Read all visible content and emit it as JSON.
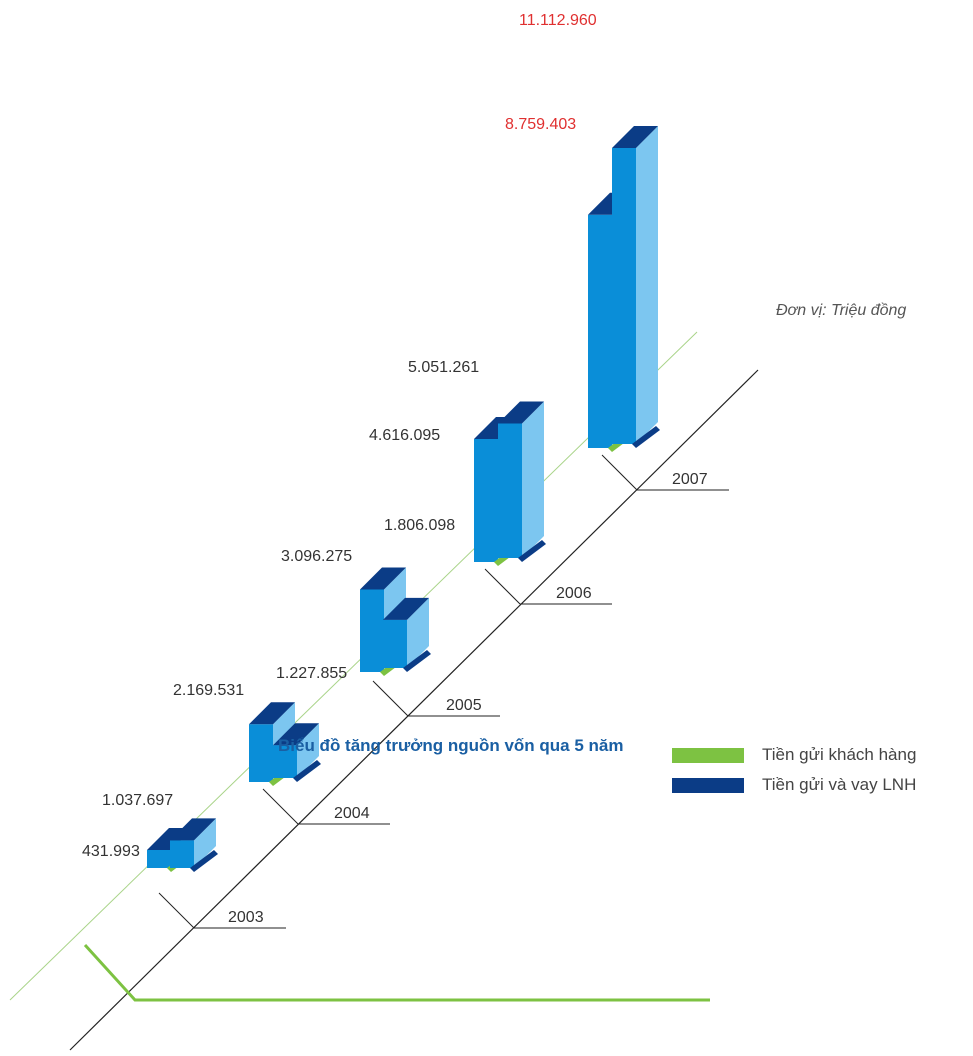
{
  "chart_data": {
    "type": "bar",
    "title": "Biểu đồ tăng trưởng nguồn vốn qua 5 năm",
    "unit": "Đơn vị: Triệu đồng",
    "categories": [
      "2003",
      "2004",
      "2005",
      "2006",
      "2007"
    ],
    "series": [
      {
        "name": "Tiền gửi khách hàng",
        "values_label": [
          "431.993",
          "2.169.531",
          "3.096.275",
          "4.616.095",
          "8.759.403"
        ]
      },
      {
        "name": "Tiền gửi và vay LNH",
        "values_label": [
          "1.037.697",
          "1.227.855",
          "1.806.098",
          "5.051.261",
          "11.112.960"
        ]
      }
    ],
    "highlight_color": "#e03030",
    "colors": {
      "front": "#0a8ed8",
      "side": "#7cc6f0",
      "top": "#0b3c86",
      "legend_customer": "#7dc242",
      "legend_interbank": "#0b3c86",
      "axis": "#222222",
      "guide": "#a9d489",
      "title": "#1a5fa3"
    }
  }
}
